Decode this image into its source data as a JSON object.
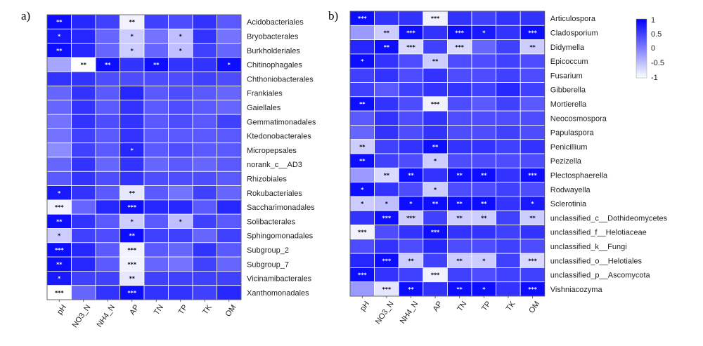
{
  "chart_data": [
    {
      "type": "heatmap",
      "panel_label": "a)",
      "columns": [
        "pH",
        "NO3_N",
        "NH4_N",
        "AP",
        "TN",
        "TP",
        "TK",
        "OM"
      ],
      "rows": [
        "Acidobacteriales",
        "Bryobacterales",
        "Burkholderiales",
        "Chitinophagales",
        "Chthoniobacterales",
        "Frankiales",
        "Gaiellales",
        "Gemmatimonadales",
        "Ktedonobacterales",
        "Micropepsales",
        "norank_c__AD3",
        "Rhizobiales",
        "Rokubacteriales",
        "Saccharimonadales",
        "Solibacterales",
        "Sphingomonadales",
        "Subgroup_2",
        "Subgroup_7",
        "Vicinamibacterales",
        "Xanthomonadales"
      ],
      "values": [
        [
          0.9,
          0.7,
          0.5,
          -0.9,
          0.5,
          0.4,
          0.6,
          0.3
        ],
        [
          0.8,
          0.7,
          0.2,
          -0.6,
          0.1,
          -0.5,
          0.6,
          0.1
        ],
        [
          0.9,
          0.7,
          0.2,
          -0.6,
          0.2,
          -0.5,
          0.5,
          0.2
        ],
        [
          -0.3,
          -1.0,
          0.9,
          0.6,
          0.9,
          0.6,
          0.6,
          0.9
        ],
        [
          0.6,
          0.6,
          0.4,
          0.4,
          0.4,
          0.4,
          0.5,
          0.4
        ],
        [
          0.2,
          0.6,
          0.3,
          0.7,
          0.3,
          0.4,
          0.3,
          0.2
        ],
        [
          0.2,
          0.6,
          0.3,
          0.6,
          0.3,
          0.4,
          0.3,
          0.2
        ],
        [
          0.1,
          0.6,
          0.4,
          0.6,
          0.3,
          0.4,
          0.3,
          0.5
        ],
        [
          0.1,
          0.5,
          0.3,
          0.6,
          0.3,
          0.3,
          0.3,
          0.3
        ],
        [
          -0.1,
          0.5,
          0.3,
          0.7,
          0.3,
          0.4,
          0.3,
          0.3
        ],
        [
          0.2,
          0.6,
          0.2,
          0.6,
          0.2,
          0.3,
          0.2,
          0.3
        ],
        [
          0.3,
          0.6,
          0.4,
          0.6,
          0.4,
          0.4,
          0.4,
          0.3
        ],
        [
          0.8,
          0.6,
          0.3,
          -0.8,
          0.3,
          0.1,
          0.5,
          0.2
        ],
        [
          -0.9,
          0.2,
          0.7,
          0.9,
          0.7,
          0.7,
          0.3,
          0.7
        ],
        [
          0.9,
          0.6,
          0.3,
          -0.6,
          0.3,
          -0.5,
          0.5,
          0.3
        ],
        [
          -0.6,
          0.5,
          0.4,
          0.9,
          0.5,
          0.5,
          0.2,
          0.5
        ],
        [
          0.9,
          0.7,
          0.3,
          -0.9,
          0.3,
          0.2,
          0.6,
          0.3
        ],
        [
          0.9,
          0.7,
          0.3,
          -0.9,
          0.2,
          0.1,
          0.5,
          0.2
        ],
        [
          0.8,
          0.5,
          0.5,
          -0.8,
          0.5,
          0.5,
          0.5,
          0.5
        ],
        [
          -1.0,
          0.2,
          0.6,
          0.9,
          0.6,
          0.6,
          0.5,
          0.7
        ]
      ],
      "significance": [
        [
          "**",
          "",
          "",
          "**",
          "",
          "",
          "",
          ""
        ],
        [
          "*",
          "",
          "",
          "*",
          "",
          "*",
          "",
          ""
        ],
        [
          "**",
          "",
          "",
          "*",
          "",
          "*",
          "",
          ""
        ],
        [
          "",
          "**",
          "**",
          "",
          "**",
          "",
          "",
          "*"
        ],
        [
          "",
          "",
          "",
          "",
          "",
          "",
          "",
          ""
        ],
        [
          "",
          "",
          "",
          "",
          "",
          "",
          "",
          ""
        ],
        [
          "",
          "",
          "",
          "",
          "",
          "",
          "",
          ""
        ],
        [
          "",
          "",
          "",
          "",
          "",
          "",
          "",
          ""
        ],
        [
          "",
          "",
          "",
          "",
          "",
          "",
          "",
          ""
        ],
        [
          "",
          "",
          "",
          "*",
          "",
          "",
          "",
          ""
        ],
        [
          "",
          "",
          "",
          "",
          "",
          "",
          "",
          ""
        ],
        [
          "",
          "",
          "",
          "",
          "",
          "",
          "",
          ""
        ],
        [
          "*",
          "",
          "",
          "**",
          "",
          "",
          "",
          ""
        ],
        [
          "***",
          "",
          "",
          "***",
          "",
          "",
          "",
          ""
        ],
        [
          "**",
          "",
          "",
          "*",
          "",
          "*",
          "",
          ""
        ],
        [
          "*",
          "",
          "",
          "**",
          "",
          "",
          "",
          ""
        ],
        [
          "***",
          "",
          "",
          "***",
          "",
          "",
          "",
          ""
        ],
        [
          "**",
          "",
          "",
          "***",
          "",
          "",
          "",
          ""
        ],
        [
          "*",
          "",
          "",
          "**",
          "",
          "",
          "",
          ""
        ],
        [
          "***",
          "",
          "",
          "***",
          "",
          "",
          "",
          ""
        ]
      ],
      "color_scale": {
        "min": -1,
        "max": 1,
        "low": "#ffffff",
        "high": "#0000ff"
      }
    },
    {
      "type": "heatmap",
      "panel_label": "b)",
      "columns": [
        "pH",
        "NO3_N",
        "NH4_N",
        "AP",
        "TN",
        "TP",
        "TK",
        "OM"
      ],
      "rows": [
        "Articulospora",
        "Cladosporium",
        "Didymella",
        "Epicoccum",
        "Fusarium",
        "Gibberella",
        "Mortierella",
        "Neocosmospora",
        "Papulaspora",
        "Penicillium",
        "Pezizella",
        "Plectosphaerella",
        "Rodwayella",
        "Sclerotinia",
        "unclassified_c__Dothideomycetes",
        "unclassified_f__Helotiaceae",
        "unclassified_k__Fungi",
        "unclassified_o__Helotiales",
        "unclassified_p__Ascomycota",
        "Vishniacozyma"
      ],
      "values": [
        [
          0.9,
          0.6,
          0.6,
          -0.9,
          0.6,
          0.5,
          0.6,
          0.6
        ],
        [
          -0.2,
          -0.6,
          0.9,
          0.6,
          0.9,
          0.8,
          0.6,
          0.9
        ],
        [
          0.7,
          0.9,
          -0.7,
          0.5,
          -0.7,
          0.2,
          0.5,
          -0.6
        ],
        [
          0.9,
          0.6,
          0.4,
          -0.6,
          0.4,
          0.4,
          0.5,
          0.4
        ],
        [
          0.5,
          0.6,
          0.4,
          0.6,
          0.4,
          0.4,
          0.5,
          0.4
        ],
        [
          0.5,
          0.3,
          0.5,
          0.6,
          0.6,
          0.5,
          0.7,
          0.5
        ],
        [
          0.9,
          0.6,
          0.4,
          -0.9,
          0.4,
          0.3,
          0.5,
          0.3
        ],
        [
          0.3,
          0.6,
          0.4,
          0.6,
          0.4,
          0.4,
          0.4,
          0.4
        ],
        [
          0.2,
          0.6,
          0.4,
          0.6,
          0.4,
          0.4,
          0.5,
          0.4
        ],
        [
          -0.6,
          0.5,
          0.6,
          0.9,
          0.6,
          0.6,
          0.5,
          0.6
        ],
        [
          0.9,
          0.5,
          0.4,
          -0.6,
          0.4,
          0.4,
          0.4,
          0.4
        ],
        [
          -0.2,
          -0.7,
          0.9,
          0.6,
          0.9,
          0.9,
          0.6,
          0.9
        ],
        [
          0.9,
          0.6,
          0.4,
          -0.6,
          0.4,
          0.4,
          0.5,
          0.4
        ],
        [
          -0.6,
          -0.5,
          0.9,
          0.9,
          0.9,
          0.9,
          0.6,
          0.8
        ],
        [
          0.6,
          0.9,
          -0.6,
          0.5,
          -0.6,
          -0.6,
          0.5,
          -0.6
        ],
        [
          -0.9,
          0.4,
          0.6,
          0.9,
          0.6,
          0.6,
          0.5,
          0.6
        ],
        [
          0.4,
          0.6,
          0.4,
          0.7,
          0.4,
          0.4,
          0.5,
          0.4
        ],
        [
          0.7,
          0.9,
          -0.6,
          0.5,
          -0.6,
          -0.6,
          0.5,
          -0.7
        ],
        [
          0.9,
          0.6,
          0.5,
          -0.9,
          0.5,
          0.4,
          0.5,
          0.5
        ],
        [
          -0.2,
          -0.8,
          0.9,
          0.6,
          0.9,
          0.9,
          0.6,
          0.9
        ]
      ],
      "significance": [
        [
          "***",
          "",
          "",
          "***",
          "",
          "",
          "",
          ""
        ],
        [
          "",
          "**",
          "***",
          "",
          "***",
          "*",
          "",
          "***"
        ],
        [
          "",
          "**",
          "***",
          "",
          "***",
          "",
          "",
          "**"
        ],
        [
          "*",
          "",
          "",
          "**",
          "",
          "",
          "",
          ""
        ],
        [
          "",
          "",
          "",
          "",
          "",
          "",
          "",
          ""
        ],
        [
          "",
          "",
          "",
          "",
          "",
          "",
          "",
          ""
        ],
        [
          "**",
          "",
          "",
          "***",
          "",
          "",
          "",
          ""
        ],
        [
          "",
          "",
          "",
          "",
          "",
          "",
          "",
          ""
        ],
        [
          "",
          "",
          "",
          "",
          "",
          "",
          "",
          ""
        ],
        [
          "**",
          "",
          "",
          "**",
          "",
          "",
          "",
          ""
        ],
        [
          "**",
          "",
          "",
          "*",
          "",
          "",
          "",
          ""
        ],
        [
          "",
          "**",
          "**",
          "",
          "**",
          "**",
          "",
          "***"
        ],
        [
          "*",
          "",
          "",
          "*",
          "",
          "",
          "",
          ""
        ],
        [
          "*",
          "*",
          "*",
          "**",
          "**",
          "**",
          "",
          "*"
        ],
        [
          "",
          "***",
          "***",
          "",
          "**",
          "**",
          "",
          "**"
        ],
        [
          "***",
          "",
          "",
          "***",
          "",
          "",
          "",
          ""
        ],
        [
          "",
          "",
          "",
          "",
          "",
          "",
          "",
          ""
        ],
        [
          "",
          "***",
          "**",
          "",
          "**",
          "*",
          "",
          "***"
        ],
        [
          "***",
          "",
          "",
          "***",
          "",
          "",
          "",
          ""
        ],
        [
          "",
          "***",
          "**",
          "",
          "**",
          "*",
          "",
          "***"
        ]
      ],
      "color_scale": {
        "min": -1,
        "max": 1,
        "low": "#ffffff",
        "high": "#0000ff"
      }
    }
  ],
  "legend": {
    "tick_labels": [
      "1",
      "0.5",
      "0",
      "-0.5",
      "-1"
    ]
  },
  "colors": {
    "positive": "#0000ff",
    "negative": "#ffffff",
    "cell_border": "#ffffff"
  }
}
